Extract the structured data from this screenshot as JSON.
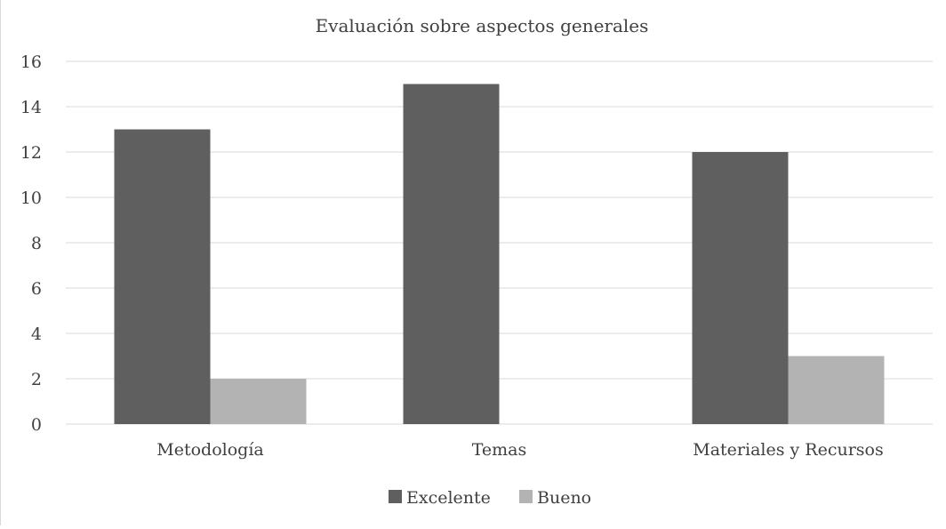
{
  "chart_data": {
    "type": "bar",
    "title": "Evaluación sobre aspectos generales",
    "categories": [
      "Metodología",
      "Temas",
      "Materiales y Recursos"
    ],
    "series": [
      {
        "name": "Excelente",
        "values": [
          13,
          15,
          12
        ],
        "color": "#5f5f5f"
      },
      {
        "name": "Bueno",
        "values": [
          2,
          0,
          3
        ],
        "color": "#b3b3b3"
      }
    ],
    "ylim": [
      0,
      16
    ],
    "yticks": [
      "0",
      "2",
      "4",
      "6",
      "8",
      "10",
      "12",
      "14",
      "16"
    ],
    "grid": true,
    "legend_position": "bottom",
    "colors": {
      "grid": "#d9d9d9",
      "text": "#404040"
    }
  }
}
